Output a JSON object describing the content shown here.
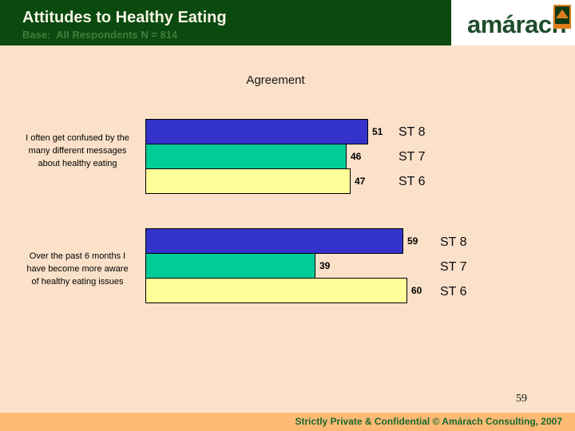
{
  "header": {
    "title": "Attitudes to Healthy Eating",
    "base": "Base:  All Respondents N = 814"
  },
  "logo": {
    "text": "amárach",
    "icon": "hourglass-icon"
  },
  "colors": {
    "header_bg": "#0a4a0f",
    "body_bg": "#fbe1c9",
    "footer_bg": "#ffba75",
    "logo_orange": "#dd7d1e",
    "bar_blue": "#3333cc",
    "bar_teal": "#00cc99",
    "bar_yellow": "#ffff99"
  },
  "chart_data": {
    "type": "bar",
    "orientation": "horizontal",
    "title": "Agreement",
    "value_axis_range": [
      0,
      100
    ],
    "grid": false,
    "legend_position": "right-of-bars",
    "groups": [
      {
        "label": "I often get confused by the many different messages about healthy eating",
        "label_lines": [
          "I often get confused by the",
          "many different messages",
          "about healthy eating"
        ],
        "bars": [
          {
            "series": "ST 8",
            "value": 51,
            "color": "#3333cc"
          },
          {
            "series": "ST 7",
            "value": 46,
            "color": "#00cc99"
          },
          {
            "series": "ST 6",
            "value": 47,
            "color": "#ffff99"
          }
        ]
      },
      {
        "label": "Over the past 6 months I have become more aware of healthy eating issues",
        "label_lines": [
          "Over the past 6 months I",
          "have become more aware",
          "of healthy eating issues"
        ],
        "bars": [
          {
            "series": "ST 8",
            "value": 59,
            "color": "#3333cc"
          },
          {
            "series": "ST 7",
            "value": 39,
            "color": "#00cc99"
          },
          {
            "series": "ST 6",
            "value": 60,
            "color": "#ffff99"
          }
        ]
      }
    ]
  },
  "page_number": "59",
  "footer": {
    "text": "Strictly Private & Confidential © Amárach Consulting, 2007"
  }
}
